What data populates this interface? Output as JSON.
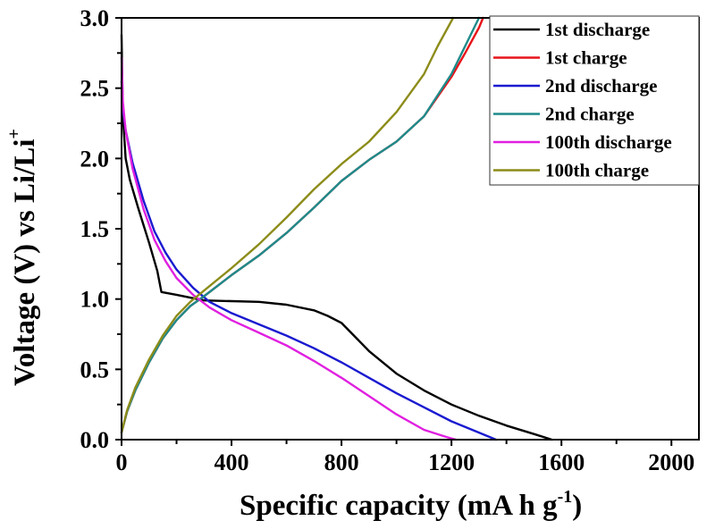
{
  "chart_data": {
    "type": "line",
    "title": "",
    "xlabel": "Specific capacity (mA h g",
    "xlabel_superscript": "-1",
    "xlabel_suffix": ")",
    "ylabel": "Voltage (V) vs Li/Li",
    "ylabel_superscript": "+",
    "xlim": [
      0,
      2100
    ],
    "ylim": [
      0,
      3.0
    ],
    "xticks": [
      0,
      400,
      800,
      1200,
      1600,
      2000
    ],
    "xtick_labels": [
      "0",
      "400",
      "800",
      "1200",
      "1600",
      "2000"
    ],
    "xminor": [
      200,
      600,
      1000,
      1400,
      1800
    ],
    "yticks": [
      0,
      0.5,
      1.0,
      1.5,
      2.0,
      2.5,
      3.0
    ],
    "ytick_labels": [
      "0.0",
      "0.5",
      "1.0",
      "1.5",
      "2.0",
      "2.5",
      "3.0"
    ],
    "yminor": [
      0.25,
      0.75,
      1.25,
      1.75,
      2.25,
      2.75
    ],
    "grid": false,
    "legend_position": "top-right",
    "series": [
      {
        "name": "1st discharge",
        "color": "#000000",
        "x": [
          0,
          5,
          15,
          30,
          60,
          100,
          130,
          145,
          200,
          300,
          400,
          500,
          600,
          700,
          750,
          800,
          850,
          900,
          1000,
          1100,
          1200,
          1300,
          1400,
          1500,
          1565
        ],
        "y": [
          2.88,
          2.3,
          2.0,
          1.85,
          1.65,
          1.4,
          1.2,
          1.05,
          1.03,
          0.99,
          0.985,
          0.98,
          0.96,
          0.92,
          0.88,
          0.83,
          0.73,
          0.63,
          0.47,
          0.35,
          0.25,
          0.17,
          0.1,
          0.04,
          0.0
        ]
      },
      {
        "name": "1st charge",
        "color": "#e8141a",
        "x": [
          0,
          20,
          50,
          100,
          150,
          200,
          250,
          300,
          400,
          500,
          600,
          700,
          800,
          900,
          1000,
          1100,
          1200,
          1250,
          1300,
          1315
        ],
        "y": [
          0.05,
          0.2,
          0.35,
          0.55,
          0.72,
          0.85,
          0.95,
          1.02,
          1.17,
          1.31,
          1.47,
          1.65,
          1.84,
          1.99,
          2.12,
          2.3,
          2.58,
          2.75,
          2.93,
          3.0
        ]
      },
      {
        "name": "2nd discharge",
        "color": "#1a1ad0",
        "x": [
          0,
          5,
          15,
          40,
          80,
          120,
          160,
          200,
          260,
          320,
          400,
          500,
          600,
          700,
          800,
          900,
          1000,
          1100,
          1200,
          1300,
          1362
        ],
        "y": [
          2.55,
          2.35,
          2.2,
          1.97,
          1.7,
          1.48,
          1.33,
          1.21,
          1.08,
          0.98,
          0.9,
          0.82,
          0.74,
          0.65,
          0.55,
          0.44,
          0.33,
          0.23,
          0.13,
          0.05,
          0.0
        ]
      },
      {
        "name": "2nd charge",
        "color": "#1e8a8a",
        "x": [
          0,
          20,
          50,
          100,
          150,
          200,
          250,
          300,
          400,
          500,
          600,
          700,
          800,
          900,
          1000,
          1100,
          1200,
          1250,
          1300
        ],
        "y": [
          0.05,
          0.2,
          0.35,
          0.55,
          0.72,
          0.85,
          0.95,
          1.02,
          1.17,
          1.31,
          1.47,
          1.65,
          1.84,
          1.99,
          2.12,
          2.3,
          2.6,
          2.8,
          3.0
        ]
      },
      {
        "name": "100th discharge",
        "color": "#e020e0",
        "x": [
          0,
          5,
          15,
          40,
          80,
          120,
          160,
          200,
          260,
          320,
          400,
          500,
          600,
          700,
          800,
          900,
          1000,
          1100,
          1180,
          1216
        ],
        "y": [
          2.72,
          2.4,
          2.2,
          1.93,
          1.64,
          1.42,
          1.27,
          1.15,
          1.03,
          0.94,
          0.85,
          0.76,
          0.67,
          0.56,
          0.44,
          0.31,
          0.18,
          0.07,
          0.02,
          0.0
        ]
      },
      {
        "name": "100th charge",
        "color": "#8c8c1a",
        "x": [
          0,
          20,
          50,
          100,
          150,
          200,
          250,
          300,
          400,
          500,
          600,
          700,
          800,
          900,
          1000,
          1100,
          1150,
          1206
        ],
        "y": [
          0.05,
          0.21,
          0.37,
          0.57,
          0.74,
          0.88,
          0.98,
          1.06,
          1.22,
          1.39,
          1.58,
          1.78,
          1.96,
          2.12,
          2.33,
          2.6,
          2.8,
          3.0
        ]
      }
    ]
  }
}
